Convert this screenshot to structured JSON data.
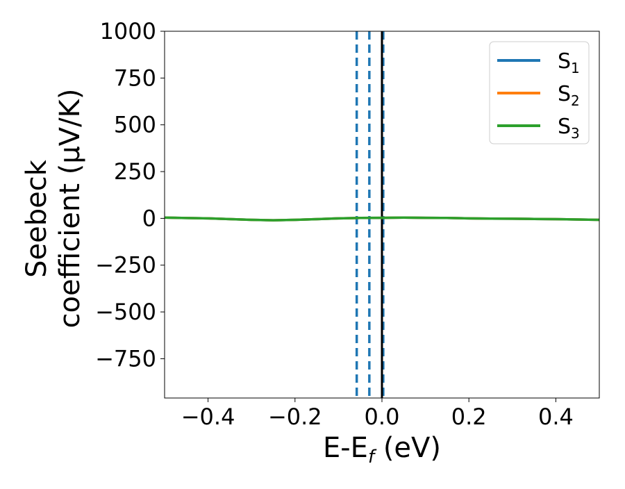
{
  "chart_data": {
    "type": "line",
    "title": "",
    "xlabel": "E-E",
    "xlabel_sub": "f",
    "xlabel_unit": " (eV)",
    "ylabel_line1": "Seebeck",
    "ylabel_line2": "coefficient  (μV/K)",
    "xlim": [
      -0.5,
      0.5
    ],
    "ylim": [
      -960,
      1000
    ],
    "xticks": [
      -0.4,
      -0.2,
      0.0,
      0.2,
      0.4
    ],
    "xtick_labels": [
      "−0.4",
      "−0.2",
      "0.0",
      "0.2",
      "0.4"
    ],
    "yticks": [
      1000,
      750,
      500,
      250,
      0,
      -250,
      -500,
      -750
    ],
    "ytick_labels": [
      "1000",
      "750",
      "500",
      "250",
      "0",
      "−250",
      "−500",
      "−750"
    ],
    "grid": false,
    "legend_position": "top-right",
    "series": [
      {
        "name": "S",
        "sub": "1",
        "color": "#1f77b4",
        "x": [
          -0.5,
          -0.4,
          -0.3,
          -0.25,
          -0.2,
          -0.15,
          -0.1,
          -0.05,
          0.0,
          0.05,
          0.1,
          0.15,
          0.2,
          0.25,
          0.3,
          0.35,
          0.4,
          0.45,
          0.5
        ],
        "y": [
          4,
          0,
          -8,
          -10,
          -8,
          -4,
          0,
          2,
          3,
          4,
          3,
          2,
          0,
          -1,
          -2,
          -3,
          -4,
          -6,
          -8
        ]
      },
      {
        "name": "S",
        "sub": "2",
        "color": "#ff7f0e",
        "x": [
          -0.5,
          -0.4,
          -0.3,
          -0.25,
          -0.2,
          -0.15,
          -0.1,
          -0.05,
          0.0,
          0.05,
          0.1,
          0.15,
          0.2,
          0.25,
          0.3,
          0.35,
          0.4,
          0.45,
          0.5
        ],
        "y": [
          4,
          0,
          -8,
          -10,
          -8,
          -4,
          0,
          2,
          3,
          4,
          3,
          2,
          0,
          -1,
          -2,
          -3,
          -4,
          -6,
          -8
        ]
      },
      {
        "name": "S",
        "sub": "3",
        "color": "#2ca02c",
        "x": [
          -0.5,
          -0.4,
          -0.3,
          -0.25,
          -0.2,
          -0.15,
          -0.1,
          -0.05,
          0.0,
          0.05,
          0.1,
          0.15,
          0.2,
          0.25,
          0.3,
          0.35,
          0.4,
          0.45,
          0.5
        ],
        "y": [
          4,
          0,
          -8,
          -10,
          -8,
          -4,
          0,
          2,
          3,
          4,
          3,
          2,
          0,
          -1,
          -2,
          -3,
          -4,
          -6,
          -8
        ]
      }
    ],
    "vlines": [
      {
        "x": -0.058,
        "style": "dashed",
        "color": "#1f77b4"
      },
      {
        "x": -0.029,
        "style": "dashed",
        "color": "#1f77b4"
      },
      {
        "x": 0.003,
        "style": "dashed",
        "color": "#1f77b4"
      },
      {
        "x": 0.0,
        "style": "solid",
        "color": "#000000"
      }
    ]
  }
}
